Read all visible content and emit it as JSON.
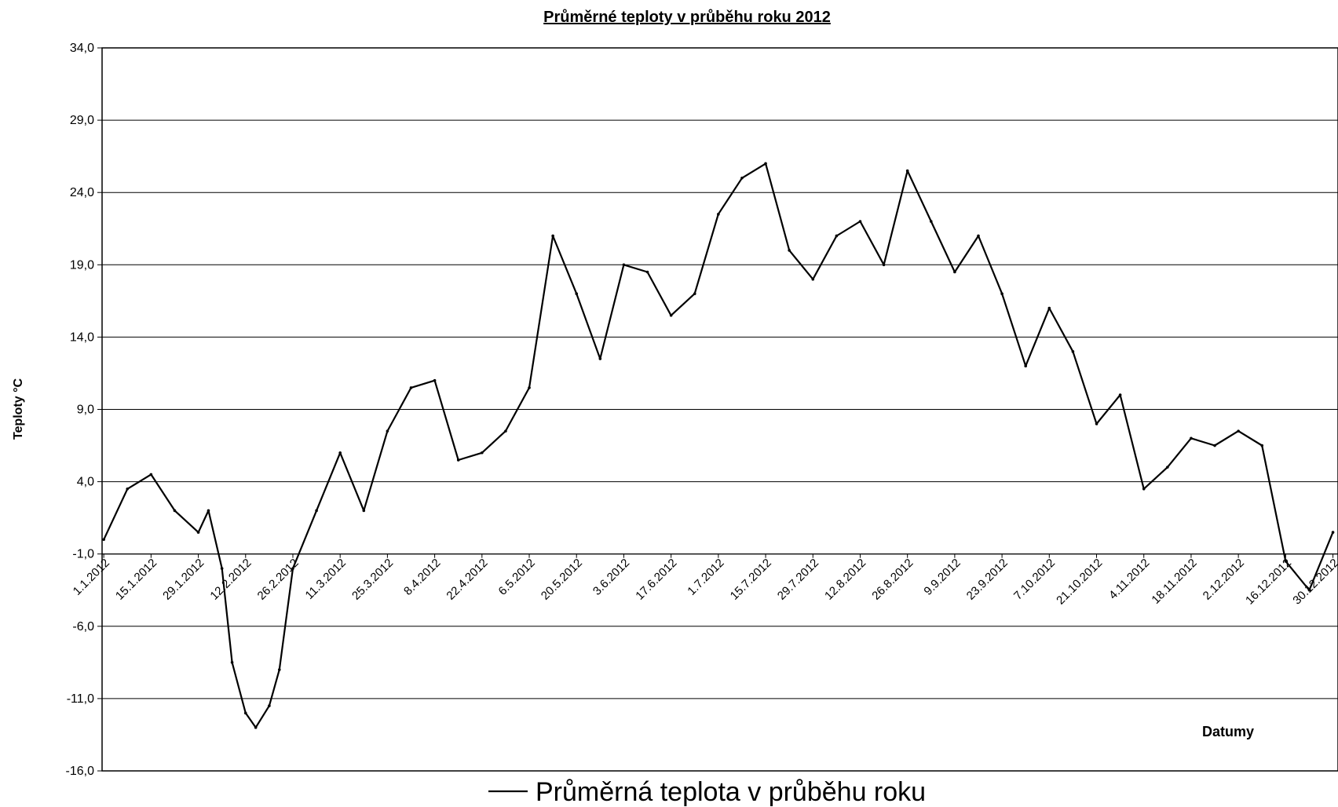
{
  "chart_data": {
    "type": "line",
    "title": "Průměrné teploty v průběhu roku 2012",
    "xlabel": "Datumy",
    "ylabel": "Teploty °C",
    "ylim": [
      -16,
      34
    ],
    "yticks": [
      -16,
      -11,
      -6,
      -1,
      4,
      9,
      14,
      19,
      24,
      29,
      34
    ],
    "ytick_labels": [
      "-16,0",
      "-11,0",
      "-6,0",
      "-1,0",
      "4,0",
      "9,0",
      "14,0",
      "19,0",
      "24,0",
      "29,0",
      "34,0"
    ],
    "x_axis_crosses_at": -1,
    "x_range": [
      "1.1.2012",
      "31.12.2012"
    ],
    "xtick_labels": [
      "1.1.2012",
      "15.1.2012",
      "29.1.2012",
      "12.2.2012",
      "26.2.2012",
      "11.3.2012",
      "25.3.2012",
      "8.4.2012",
      "22.4.2012",
      "6.5.2012",
      "20.5.2012",
      "3.6.2012",
      "17.6.2012",
      "1.7.2012",
      "15.7.2012",
      "29.7.2012",
      "12.8.2012",
      "26.8.2012",
      "9.9.2012",
      "23.9.2012",
      "7.10.2012",
      "21.10.2012",
      "4.11.2012",
      "18.11.2012",
      "2.12.2012",
      "16.12.2012",
      "30.12.2012"
    ],
    "grid": true,
    "legend_position": "bottom-center",
    "series": [
      {
        "name": "Průměrná teplota v průběhu roku",
        "color": "#000000",
        "x": [
          "1.1.2012",
          "8.1.2012",
          "15.1.2012",
          "22.1.2012",
          "29.1.2012",
          "1.2.2012",
          "5.2.2012",
          "8.2.2012",
          "12.2.2012",
          "15.2.2012",
          "19.2.2012",
          "22.2.2012",
          "26.2.2012",
          "4.3.2012",
          "11.3.2012",
          "18.3.2012",
          "25.3.2012",
          "1.4.2012",
          "8.4.2012",
          "15.4.2012",
          "22.4.2012",
          "29.4.2012",
          "6.5.2012",
          "13.5.2012",
          "20.5.2012",
          "27.5.2012",
          "3.6.2012",
          "10.6.2012",
          "17.6.2012",
          "24.6.2012",
          "1.7.2012",
          "8.7.2012",
          "15.7.2012",
          "22.7.2012",
          "29.7.2012",
          "5.8.2012",
          "12.8.2012",
          "19.8.2012",
          "26.8.2012",
          "2.9.2012",
          "9.9.2012",
          "16.9.2012",
          "23.9.2012",
          "30.9.2012",
          "7.10.2012",
          "14.10.2012",
          "21.10.2012",
          "28.10.2012",
          "4.11.2012",
          "11.11.2012",
          "18.11.2012",
          "25.11.2012",
          "2.12.2012",
          "9.12.2012",
          "16.12.2012",
          "23.12.2012",
          "30.12.2012"
        ],
        "values": [
          0.0,
          3.5,
          4.5,
          2.0,
          0.5,
          2.0,
          -2.0,
          -8.5,
          -12.0,
          -13.0,
          -11.5,
          -9.0,
          -2.0,
          2.0,
          6.0,
          2.0,
          7.5,
          10.5,
          11.0,
          5.5,
          6.0,
          7.5,
          10.5,
          21.0,
          17.0,
          12.5,
          19.0,
          18.5,
          15.5,
          17.0,
          22.5,
          25.0,
          26.0,
          20.0,
          18.0,
          21.0,
          22.0,
          19.0,
          25.5,
          22.0,
          18.5,
          21.0,
          17.0,
          12.0,
          16.0,
          13.0,
          8.0,
          10.0,
          3.5,
          5.0,
          7.0,
          6.5,
          7.5,
          6.5,
          -1.5,
          -3.5,
          0.5
        ]
      }
    ]
  }
}
